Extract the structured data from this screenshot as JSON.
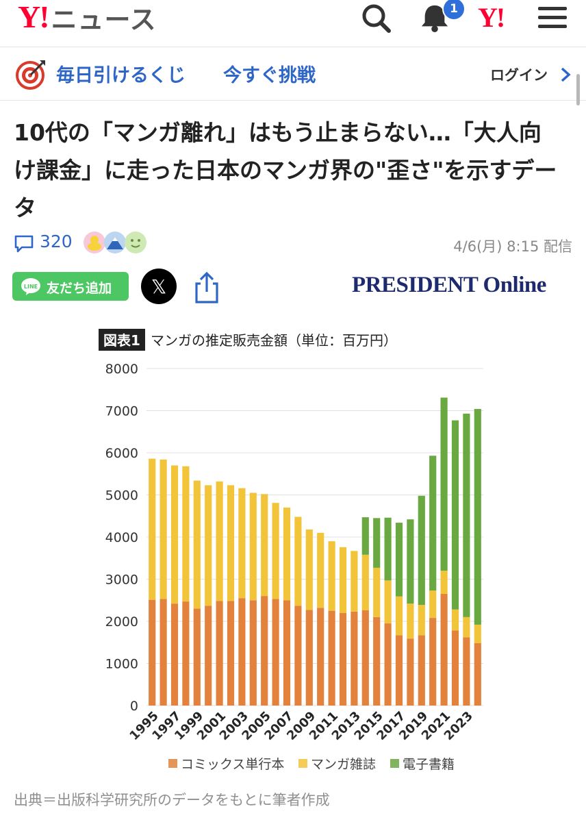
{
  "header": {
    "logo_mark": "Y!",
    "logo_text": "ニュース",
    "notification_count": "1",
    "yahoo_mini_logo": "Y!",
    "icons": [
      "search-icon",
      "bell-icon",
      "menu-icon"
    ]
  },
  "promo": {
    "text1": "毎日引けるくじ",
    "text2": "今すぐ挑戦",
    "login": "ログイン"
  },
  "article": {
    "title": "10代の「マンガ離れ」はもう止まらない…「大人向け課金」に走った日本のマンガ界の\"歪さ\"を示すデータ",
    "comment_count": "320",
    "date": "4/6(月) 8:15 配信",
    "line_button": "友だち追加",
    "line_logo": "LINE",
    "x_label": "𝕏",
    "publisher": "PRESIDENT Online",
    "caption": "出典＝出版科学研究所のデータをもとに筆者作成"
  },
  "colors": {
    "accent_blue": "#2e66c7",
    "yahoo_red": "#ff0033",
    "line_green": "#4cc764",
    "comic": "#e2823d",
    "magazine": "#f2c43a",
    "ebook": "#6aa841"
  },
  "chart_data": {
    "type": "bar",
    "stacked": true,
    "badge": "図表1",
    "title": "マンガの推定販売金額（単位：百万円）",
    "ylim": [
      0,
      8000
    ],
    "yticks": [
      "0",
      "1000",
      "2000",
      "3000",
      "4000",
      "5000",
      "6000",
      "7000",
      "8000"
    ],
    "grid": true,
    "legend_position": "bottom",
    "categories": [
      "1995",
      "1996",
      "1997",
      "1998",
      "1999",
      "2000",
      "2001",
      "2002",
      "2003",
      "2004",
      "2005",
      "2006",
      "2007",
      "2008",
      "2009",
      "2010",
      "2011",
      "2012",
      "2013",
      "2014",
      "2015",
      "2016",
      "2017",
      "2018",
      "2019",
      "2020",
      "2021",
      "2022",
      "2023",
      "2024"
    ],
    "xtick_labels": [
      "1995",
      "1997",
      "1999",
      "2001",
      "2003",
      "2005",
      "2007",
      "2009",
      "2011",
      "2013",
      "2015",
      "2017",
      "2019",
      "2021",
      "2023"
    ],
    "series": [
      {
        "name": "コミックス単行本",
        "values": [
          2510,
          2530,
          2420,
          2470,
          2300,
          2370,
          2480,
          2480,
          2550,
          2500,
          2600,
          2530,
          2500,
          2370,
          2270,
          2320,
          2250,
          2200,
          2230,
          2260,
          2100,
          1950,
          1670,
          1590,
          1670,
          2080,
          2650,
          1780,
          1620,
          1480
        ]
      },
      {
        "name": "マンガ雑誌",
        "values": [
          3350,
          3310,
          3280,
          3210,
          3040,
          2860,
          2840,
          2750,
          2610,
          2550,
          2420,
          2280,
          2200,
          2110,
          1910,
          1780,
          1650,
          1560,
          1440,
          1320,
          1170,
          1020,
          920,
          830,
          720,
          650,
          550,
          500,
          480,
          440
        ]
      },
      {
        "name": "電子書籍",
        "values": [
          0,
          0,
          0,
          0,
          0,
          0,
          0,
          0,
          0,
          0,
          0,
          0,
          0,
          0,
          0,
          0,
          0,
          0,
          0,
          890,
          1180,
          1490,
          1750,
          2000,
          2590,
          3200,
          4110,
          4490,
          4830,
          5120
        ]
      }
    ]
  }
}
